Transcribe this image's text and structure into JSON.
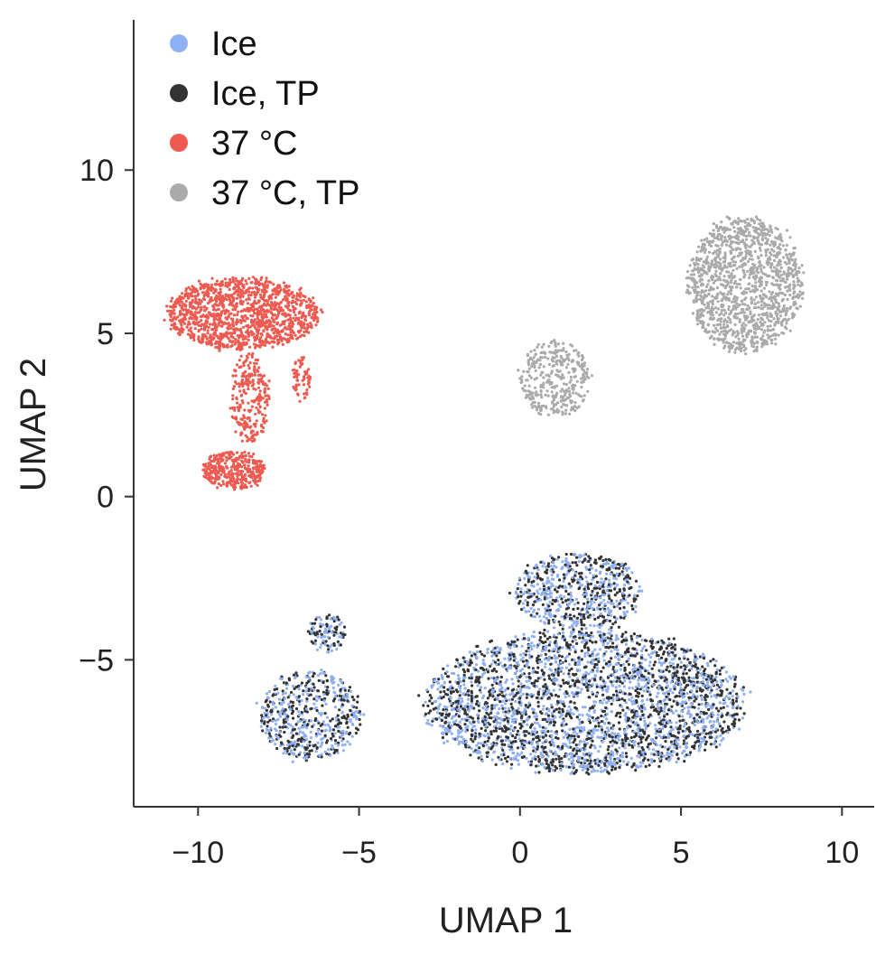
{
  "chart_data": {
    "type": "scatter",
    "title": "",
    "xlabel": "UMAP 1",
    "ylabel": "UMAP 2",
    "xlim": [
      -12,
      11
    ],
    "ylim": [
      -9.5,
      14.6
    ],
    "xticks": [
      -10,
      -5,
      0,
      5,
      10
    ],
    "yticks": [
      -5,
      0,
      5,
      10
    ],
    "xtick_labels": [
      "−10",
      "−5",
      "0",
      "5",
      "10"
    ],
    "ytick_labels": [
      "−5",
      "0",
      "5",
      "10"
    ],
    "legend_position": "top-left",
    "grid": false,
    "series": [
      {
        "name": "Ice",
        "color": "#8fb0f2",
        "clusters": [
          {
            "cx": 2.0,
            "cy": -6.3,
            "rx": 5.0,
            "ry": 2.2,
            "n": 1600
          },
          {
            "cx": 1.8,
            "cy": -2.9,
            "rx": 2.0,
            "ry": 1.2,
            "n": 350
          },
          {
            "cx": -6.5,
            "cy": -6.7,
            "rx": 1.6,
            "ry": 1.4,
            "n": 300
          },
          {
            "cx": -6.0,
            "cy": -4.2,
            "rx": 0.6,
            "ry": 0.6,
            "n": 60
          }
        ]
      },
      {
        "name": "Ice, TP",
        "color": "#333333",
        "clusters": [
          {
            "cx": 2.0,
            "cy": -6.3,
            "rx": 5.0,
            "ry": 2.2,
            "n": 1500
          },
          {
            "cx": 1.8,
            "cy": -2.9,
            "rx": 2.0,
            "ry": 1.2,
            "n": 300
          },
          {
            "cx": -6.5,
            "cy": -6.7,
            "rx": 1.6,
            "ry": 1.4,
            "n": 280
          },
          {
            "cx": -6.0,
            "cy": -4.2,
            "rx": 0.6,
            "ry": 0.6,
            "n": 50
          }
        ]
      },
      {
        "name": "37 °C",
        "color": "#ee5a50",
        "clusters": [
          {
            "cx": -8.6,
            "cy": 5.6,
            "rx": 2.4,
            "ry": 1.1,
            "n": 1300
          },
          {
            "cx": -8.4,
            "cy": 3.0,
            "rx": 0.6,
            "ry": 1.4,
            "n": 250
          },
          {
            "cx": -6.8,
            "cy": 3.6,
            "rx": 0.3,
            "ry": 0.7,
            "n": 60
          },
          {
            "cx": -8.9,
            "cy": 0.8,
            "rx": 1.0,
            "ry": 0.6,
            "n": 350
          }
        ]
      },
      {
        "name": "37 °C, TP",
        "color": "#aaaaaa",
        "clusters": [
          {
            "cx": 7.0,
            "cy": 6.5,
            "rx": 1.8,
            "ry": 2.1,
            "n": 1300
          },
          {
            "cx": 1.1,
            "cy": 3.6,
            "rx": 1.1,
            "ry": 1.2,
            "n": 350
          }
        ]
      }
    ]
  }
}
